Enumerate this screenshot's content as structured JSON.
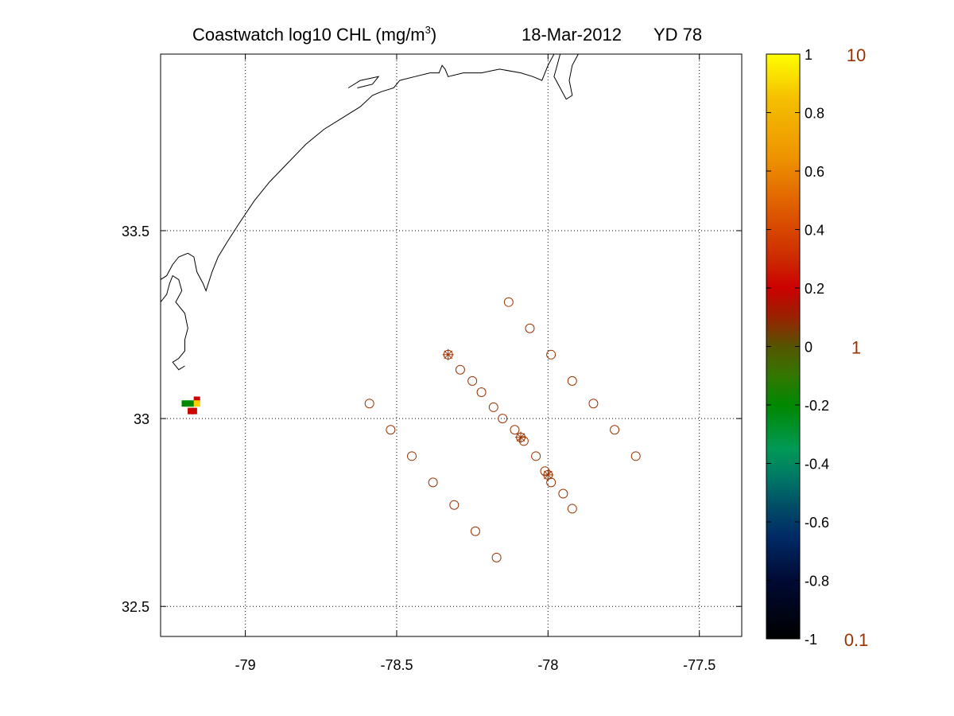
{
  "title": {
    "prefix": "Coastwatch  log10  CHL (mg/m",
    "superscript": "3",
    "suffix": ")",
    "date": "18-Mar-2012",
    "yearday": "YD 78"
  },
  "chart_data": {
    "type": "scatter",
    "title": "Coastwatch  log10  CHL (mg/m3)   18-Mar-2012   YD 78",
    "xlim": [
      -79.28,
      -77.36
    ],
    "ylim": [
      32.42,
      33.97
    ],
    "x_ticks": [
      -79,
      -78.5,
      -78,
      -77.5
    ],
    "x_tick_labels": [
      "-79",
      "-78.5",
      "-78",
      "-77.5"
    ],
    "y_ticks": [
      32.5,
      33,
      33.5
    ],
    "y_tick_labels": [
      "32.5",
      "33",
      "33.5"
    ],
    "grid": true,
    "grid_style": "dotted",
    "stations_circle": [
      [
        -78.13,
        33.31
      ],
      [
        -78.06,
        33.24
      ],
      [
        -77.99,
        33.17
      ],
      [
        -77.92,
        33.1
      ],
      [
        -77.85,
        33.04
      ],
      [
        -77.78,
        32.97
      ],
      [
        -77.71,
        32.9
      ],
      [
        -78.29,
        33.13
      ],
      [
        -78.25,
        33.1
      ],
      [
        -78.22,
        33.07
      ],
      [
        -78.18,
        33.03
      ],
      [
        -78.15,
        33.0
      ],
      [
        -78.11,
        32.97
      ],
      [
        -78.08,
        32.94
      ],
      [
        -78.04,
        32.9
      ],
      [
        -78.01,
        32.86
      ],
      [
        -77.99,
        32.83
      ],
      [
        -77.95,
        32.8
      ],
      [
        -77.92,
        32.76
      ],
      [
        -78.59,
        33.04
      ],
      [
        -78.52,
        32.97
      ],
      [
        -78.45,
        32.9
      ],
      [
        -78.38,
        32.83
      ],
      [
        -78.31,
        32.77
      ],
      [
        -78.24,
        32.7
      ],
      [
        -78.17,
        32.63
      ]
    ],
    "stations_star": [
      [
        -78.33,
        33.17
      ],
      [
        -78.09,
        32.95
      ],
      [
        -78.0,
        32.85
      ]
    ],
    "station_color": "#993300",
    "chl_pixels": [
      {
        "lon": -79.2,
        "lat": 33.04,
        "color": "#008800"
      },
      {
        "lon": -79.18,
        "lat": 33.04,
        "color": "#008800"
      },
      {
        "lon": -79.16,
        "lat": 33.05,
        "color": "#cc0000"
      },
      {
        "lon": -79.16,
        "lat": 33.04,
        "color": "#ffcc00"
      },
      {
        "lon": -79.18,
        "lat": 33.02,
        "color": "#cc0000"
      },
      {
        "lon": -79.17,
        "lat": 33.02,
        "color": "#cc0000"
      }
    ],
    "coastline": [
      [
        -79.28,
        33.37
      ],
      [
        -79.26,
        33.38
      ],
      [
        -79.24,
        33.41
      ],
      [
        -79.22,
        33.43
      ],
      [
        -79.19,
        33.44
      ],
      [
        -79.17,
        33.43
      ],
      [
        -79.16,
        33.39
      ],
      [
        -79.14,
        33.36
      ],
      [
        -79.13,
        33.34
      ],
      [
        -79.11,
        33.39
      ],
      [
        -79.09,
        33.43
      ],
      [
        -79.06,
        33.47
      ],
      [
        -79.02,
        33.52
      ],
      [
        -78.97,
        33.58
      ],
      [
        -78.92,
        33.63
      ],
      [
        -78.86,
        33.68
      ],
      [
        -78.8,
        33.73
      ],
      [
        -78.74,
        33.77
      ],
      [
        -78.68,
        33.8
      ],
      [
        -78.62,
        33.83
      ],
      [
        -78.58,
        33.86
      ],
      [
        -78.55,
        33.87
      ],
      [
        -78.51,
        33.88
      ],
      [
        -78.49,
        33.9
      ],
      [
        -78.44,
        33.91
      ],
      [
        -78.39,
        33.92
      ],
      [
        -78.36,
        33.92
      ],
      [
        -78.35,
        33.94
      ],
      [
        -78.34,
        33.93
      ],
      [
        -78.33,
        33.91
      ],
      [
        -78.28,
        33.92
      ],
      [
        -78.22,
        33.92
      ],
      [
        -78.16,
        33.93
      ],
      [
        -78.09,
        33.92
      ],
      [
        -78.05,
        33.91
      ],
      [
        -78.02,
        33.9
      ],
      [
        -78.01,
        33.92
      ],
      [
        -78.0,
        33.94
      ],
      [
        -77.98,
        33.97
      ]
    ],
    "coastline_river": [
      [
        -79.28,
        33.31
      ],
      [
        -79.26,
        33.33
      ],
      [
        -79.25,
        33.36
      ],
      [
        -79.24,
        33.38
      ],
      [
        -79.22,
        33.37
      ],
      [
        -79.21,
        33.34
      ],
      [
        -79.23,
        33.31
      ],
      [
        -79.2,
        33.28
      ],
      [
        -79.19,
        33.24
      ],
      [
        -79.2,
        33.21
      ],
      [
        -79.2,
        33.18
      ],
      [
        -79.22,
        33.16
      ],
      [
        -79.24,
        33.15
      ],
      [
        -79.22,
        33.13
      ],
      [
        -79.2,
        33.14
      ]
    ],
    "coastline_island": [
      [
        -78.63,
        33.88
      ],
      [
        -78.58,
        33.89
      ],
      [
        -78.56,
        33.91
      ],
      [
        -78.62,
        33.9
      ],
      [
        -78.66,
        33.88
      ]
    ],
    "coastline_cape": [
      [
        -77.96,
        33.97
      ],
      [
        -77.97,
        33.94
      ],
      [
        -77.98,
        33.91
      ],
      [
        -77.96,
        33.88
      ],
      [
        -77.94,
        33.85
      ],
      [
        -77.92,
        33.86
      ],
      [
        -77.93,
        33.9
      ],
      [
        -77.92,
        33.94
      ],
      [
        -77.9,
        33.97
      ]
    ]
  },
  "colorbar": {
    "ticks": [
      "1",
      "0.8",
      "0.6",
      "0.4",
      "0.2",
      "0",
      "-0.2",
      "-0.4",
      "-0.6",
      "-0.8",
      "-1"
    ],
    "tick_values": [
      1,
      0.8,
      0.6,
      0.4,
      0.2,
      0,
      -0.2,
      -0.4,
      -0.6,
      -0.8,
      -1
    ],
    "right_labels": [
      "10",
      "1",
      "0.1"
    ],
    "right_label_values": [
      1,
      0,
      -1
    ],
    "right_label_color": "#993300",
    "gradient": [
      {
        "value": 1.0,
        "color": "#ffff00"
      },
      {
        "value": 0.85,
        "color": "#f5c000"
      },
      {
        "value": 0.65,
        "color": "#ee9400"
      },
      {
        "value": 0.45,
        "color": "#dd5500"
      },
      {
        "value": 0.3,
        "color": "#cc2a00"
      },
      {
        "value": 0.2,
        "color": "#cc0000"
      },
      {
        "value": 0.1,
        "color": "#992200"
      },
      {
        "value": 0.0,
        "color": "#555500"
      },
      {
        "value": -0.1,
        "color": "#337700"
      },
      {
        "value": -0.2,
        "color": "#008800"
      },
      {
        "value": -0.35,
        "color": "#009955"
      },
      {
        "value": -0.45,
        "color": "#007766"
      },
      {
        "value": -0.55,
        "color": "#004c66"
      },
      {
        "value": -0.65,
        "color": "#002a66"
      },
      {
        "value": -0.8,
        "color": "#000a33"
      },
      {
        "value": -1.0,
        "color": "#000000"
      }
    ]
  }
}
